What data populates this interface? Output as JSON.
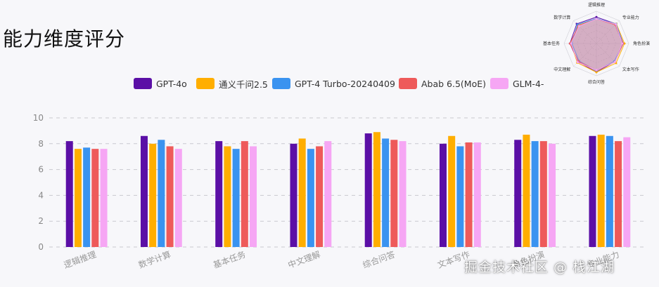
{
  "page": {
    "title": "能力维度评分",
    "watermark": "掘金技术社区 @ 栈江湖"
  },
  "chart_data": [
    {
      "type": "bar",
      "categories": [
        "逻辑推理",
        "数学计算",
        "基本任务",
        "中文理解",
        "综合问答",
        "文本写作",
        "角色扮演",
        "专业能力"
      ],
      "series": [
        {
          "name": "GPT-4o",
          "color": "#5b0fa6",
          "values": [
            8.2,
            8.6,
            8.2,
            8.0,
            8.8,
            8.0,
            8.3,
            8.6
          ]
        },
        {
          "name": "通义千问2.5",
          "color": "#ffae00",
          "values": [
            7.6,
            8.0,
            7.8,
            8.4,
            8.9,
            8.6,
            8.7,
            8.7
          ]
        },
        {
          "name": "GPT-4 Turbo-20240409",
          "color": "#3a93f0",
          "values": [
            7.7,
            8.3,
            7.6,
            7.6,
            8.4,
            7.8,
            8.2,
            8.6
          ]
        },
        {
          "name": "Abab 6.5(MoE)",
          "color": "#ee5a5a",
          "values": [
            7.6,
            7.8,
            8.2,
            7.8,
            8.3,
            8.1,
            8.2,
            8.2
          ]
        },
        {
          "name": "GLM-4-",
          "color": "#f6a6f4",
          "values": [
            7.6,
            7.6,
            7.8,
            8.2,
            8.2,
            8.1,
            8.0,
            8.5
          ]
        }
      ],
      "yticks": [
        "0",
        "2",
        "4",
        "6",
        "8",
        "10"
      ],
      "ylim": [
        0,
        10
      ],
      "grid": true,
      "legend": "top"
    },
    {
      "type": "radar",
      "axes": [
        "逻辑推理",
        "专业能力",
        "角色扮演",
        "文本写作",
        "综合问答",
        "中文理解",
        "基本任务",
        "数学计算"
      ],
      "series": [
        {
          "name": "GPT-4o",
          "color": "#5b0fa6",
          "values": [
            8.2,
            8.6,
            8.3,
            8.0,
            8.8,
            8.0,
            8.2,
            8.6
          ]
        },
        {
          "name": "通义千问2.5",
          "color": "#ffae00",
          "values": [
            7.6,
            8.7,
            8.7,
            8.6,
            8.9,
            8.4,
            7.8,
            8.0
          ]
        },
        {
          "name": "GPT-4 Turbo-20240409",
          "color": "#3a93f0",
          "values": [
            7.7,
            8.6,
            8.2,
            7.8,
            8.4,
            7.6,
            7.6,
            8.3
          ]
        },
        {
          "name": "Abab 6.5(MoE)",
          "color": "#ee5a5a",
          "values": [
            7.6,
            8.2,
            8.2,
            8.1,
            8.3,
            7.8,
            8.2,
            7.8
          ]
        },
        {
          "name": "GLM-4-",
          "color": "#f6a6f4",
          "values": [
            7.6,
            8.5,
            8.0,
            8.1,
            8.2,
            8.2,
            7.8,
            7.6
          ]
        }
      ],
      "max": 10
    }
  ]
}
